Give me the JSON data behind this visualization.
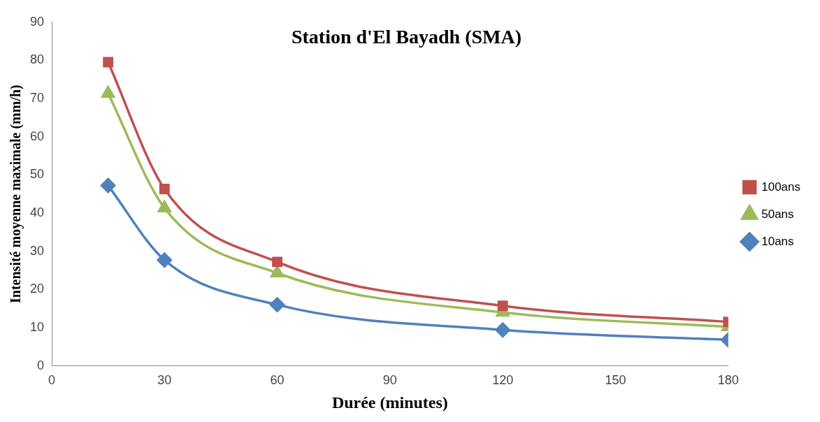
{
  "chart_data": {
    "type": "line",
    "title": "Station d'El Bayadh (SMA)",
    "xlabel": "Durée (minutes)",
    "ylabel": "Intensité moyenne maximale (mm/h)",
    "x": [
      15,
      30,
      60,
      120,
      180
    ],
    "series": [
      {
        "name": "100ans",
        "color": "#c0504d",
        "marker": "square",
        "values": [
          79.5,
          46.3,
          27.2,
          15.7,
          11.5
        ]
      },
      {
        "name": "50ans",
        "color": "#9bbb59",
        "marker": "triangle",
        "values": [
          71.3,
          41.3,
          24.3,
          14.0,
          10.2
        ]
      },
      {
        "name": "10ans",
        "color": "#4f81bd",
        "marker": "diamond",
        "values": [
          47.2,
          27.7,
          16.0,
          9.4,
          6.8
        ]
      }
    ],
    "xlim": [
      0,
      180
    ],
    "xticks": [
      0,
      30,
      60,
      90,
      120,
      150,
      180
    ],
    "ylim": [
      0,
      90
    ],
    "yticks": [
      0,
      10,
      20,
      30,
      40,
      50,
      60,
      70,
      80,
      90
    ],
    "grid": false,
    "legend": "right"
  }
}
